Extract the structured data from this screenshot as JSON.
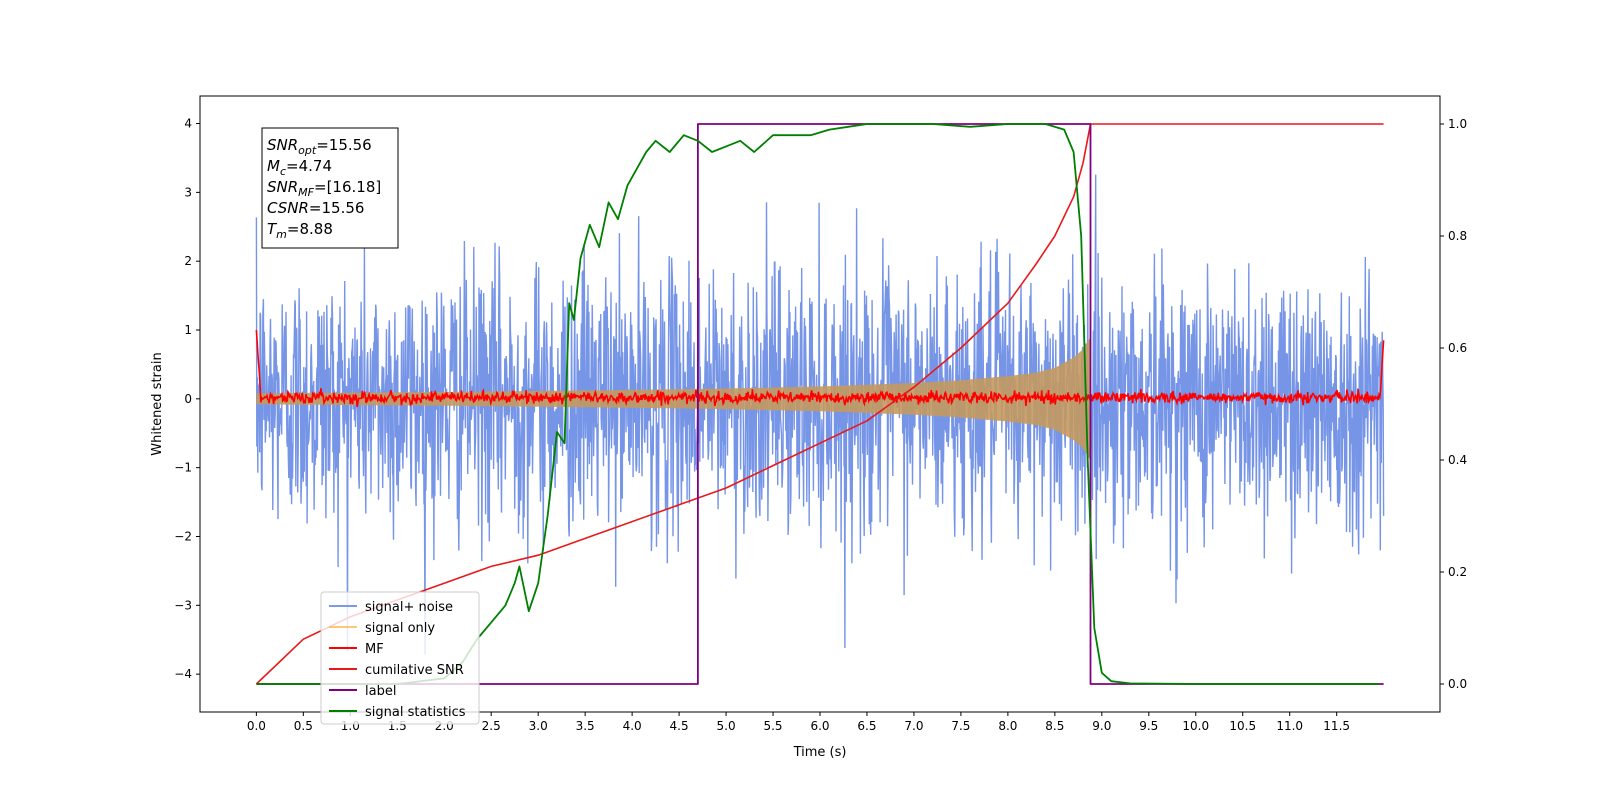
{
  "chart_data": {
    "type": "line",
    "xlabel": "Time (s)",
    "ylabel": "Whitened strain",
    "xlim": [
      -0.6,
      12.6
    ],
    "ylim": [
      -4.55,
      4.4
    ],
    "y2lim": [
      -0.05,
      1.05
    ],
    "xticks": [
      "0.0",
      "0.5",
      "1.0",
      "1.5",
      "2.0",
      "2.5",
      "3.0",
      "3.5",
      "4.0",
      "4.5",
      "5.0",
      "5.5",
      "6.0",
      "6.5",
      "7.0",
      "7.5",
      "8.0",
      "8.5",
      "9.0",
      "9.5",
      "10.0",
      "10.5",
      "11.0",
      "11.5"
    ],
    "yticks": [
      "−4",
      "−3",
      "−2",
      "−1",
      "0",
      "1",
      "2",
      "3",
      "4"
    ],
    "y2ticks": [
      "0.0",
      "0.2",
      "0.4",
      "0.6",
      "0.8",
      "1.0"
    ],
    "legend_placement": "lower-left",
    "legend": [
      {
        "label": "signal+ noise",
        "color": "#6f8fe6",
        "alpha": 0.9
      },
      {
        "label": "signal only",
        "color": "#ffb347",
        "alpha": 0.75
      },
      {
        "label": "MF",
        "color": "#ff0000",
        "alpha": 1
      },
      {
        "label": "cumilative SNR",
        "color": "#e8191a",
        "alpha": 1
      },
      {
        "label": "label",
        "color": "#800080",
        "alpha": 1
      },
      {
        "label": "signal statistics",
        "color": "#008000",
        "alpha": 1
      }
    ],
    "annotation": [
      {
        "var": "SNR",
        "sub": "opt",
        "text": "=15.56"
      },
      {
        "var": "M",
        "sub": "c",
        "text": "=4.74"
      },
      {
        "var": "SNR",
        "sub": "MF",
        "text": "=[16.18]"
      },
      {
        "var": "CSNR",
        "sub": "",
        "text": "=15.56"
      },
      {
        "var": "T",
        "sub": "m",
        "text": "=8.88"
      }
    ],
    "series": [
      {
        "name": "signal+ noise",
        "axis": "left",
        "kind": "noise",
        "x_range": [
          0,
          12
        ],
        "amplitude_std": 1.0,
        "approx_extent": [
          -4.0,
          4.0
        ]
      },
      {
        "name": "signal only",
        "axis": "left",
        "kind": "chirp-envelope",
        "x": [
          0,
          2,
          4,
          5,
          6,
          7,
          7.5,
          8,
          8.3,
          8.5,
          8.7,
          8.8,
          8.88
        ],
        "envelope": [
          0.08,
          0.1,
          0.13,
          0.15,
          0.18,
          0.23,
          0.27,
          0.33,
          0.38,
          0.45,
          0.6,
          0.72,
          0.9
        ]
      },
      {
        "name": "MF",
        "axis": "left",
        "kind": "noisy-baseline",
        "x_range": [
          0,
          12
        ],
        "baseline": 0.02,
        "spread": 0.07,
        "edge_value": 1.0
      },
      {
        "name": "cumilative SNR",
        "axis": "right",
        "x": [
          0,
          0.5,
          1,
          1.5,
          2,
          2.5,
          3,
          3.5,
          4,
          4.5,
          5,
          5.5,
          6,
          6.5,
          7,
          7.5,
          8,
          8.3,
          8.5,
          8.7,
          8.8,
          8.88,
          12
        ],
        "y": [
          0.0,
          0.08,
          0.12,
          0.15,
          0.18,
          0.21,
          0.23,
          0.26,
          0.29,
          0.32,
          0.35,
          0.39,
          0.43,
          0.47,
          0.53,
          0.6,
          0.68,
          0.75,
          0.8,
          0.87,
          0.93,
          1.0,
          1.0
        ]
      },
      {
        "name": "label",
        "axis": "right",
        "x": [
          0,
          4.7,
          4.7,
          8.88,
          8.88,
          12
        ],
        "y": [
          0,
          0,
          1,
          1,
          0,
          0
        ]
      },
      {
        "name": "signal statistics",
        "axis": "right",
        "x": [
          0,
          1,
          1.5,
          2,
          2.2,
          2.35,
          2.5,
          2.65,
          2.75,
          2.8,
          2.9,
          3.0,
          3.1,
          3.2,
          3.28,
          3.33,
          3.38,
          3.45,
          3.55,
          3.65,
          3.75,
          3.85,
          3.95,
          4.05,
          4.15,
          4.25,
          4.4,
          4.55,
          4.7,
          4.85,
          5.0,
          5.15,
          5.3,
          5.5,
          5.7,
          5.9,
          6.1,
          6.3,
          6.5,
          6.8,
          7.2,
          7.6,
          8.0,
          8.4,
          8.6,
          8.7,
          8.78,
          8.85,
          8.92,
          9.0,
          9.1,
          9.3,
          10,
          11,
          11.95
        ],
        "y": [
          0.0,
          0.0,
          0.0,
          0.01,
          0.04,
          0.08,
          0.11,
          0.14,
          0.18,
          0.21,
          0.13,
          0.18,
          0.3,
          0.45,
          0.43,
          0.68,
          0.65,
          0.76,
          0.82,
          0.78,
          0.86,
          0.83,
          0.89,
          0.92,
          0.95,
          0.97,
          0.95,
          0.98,
          0.97,
          0.95,
          0.96,
          0.97,
          0.95,
          0.98,
          0.98,
          0.98,
          0.99,
          0.995,
          1.0,
          1.0,
          1.0,
          0.995,
          1.0,
          1.0,
          0.99,
          0.95,
          0.8,
          0.4,
          0.1,
          0.02,
          0.005,
          0.001,
          0.0,
          0.0,
          0.0
        ]
      }
    ]
  }
}
